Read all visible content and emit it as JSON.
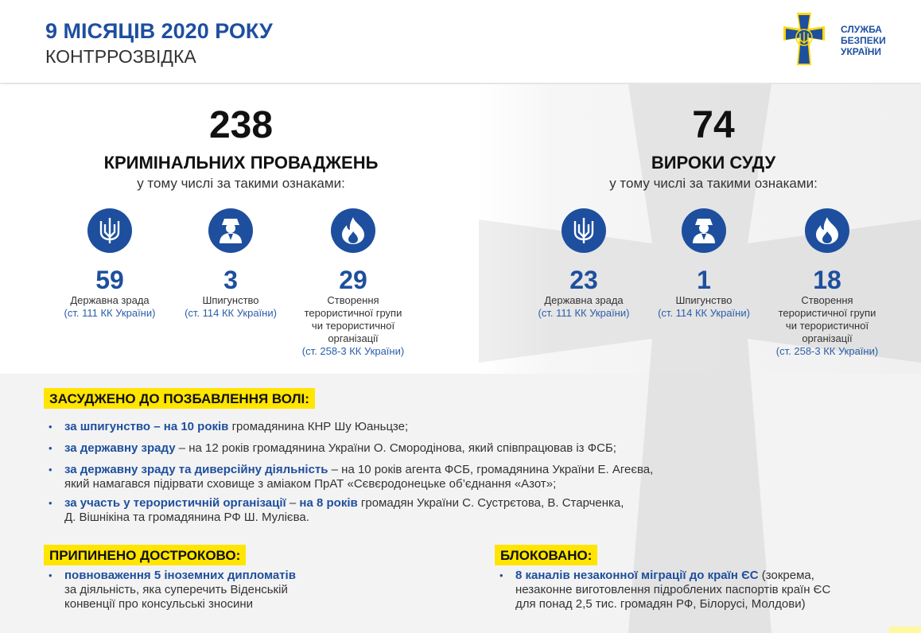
{
  "header": {
    "title": "9 МІСЯЦІВ 2020 РОКУ",
    "subtitle": "КОНТРРОЗВІДКА",
    "logo_text": [
      "СЛУЖБА",
      "БЕЗПЕКИ",
      "УКРАЇНИ"
    ]
  },
  "colors": {
    "brand_blue": "#1e4f9e",
    "highlight_yellow": "#ffe500"
  },
  "left": {
    "number": "238",
    "title": "КРИМІНАЛЬНИХ ПРОВАДЖЕНЬ",
    "subtitle": "у тому числі за такими ознаками:",
    "items": [
      {
        "icon": "trident-icon",
        "value": "59",
        "label": [
          "Державна зрада"
        ],
        "article": "(ст. 111 КК України)"
      },
      {
        "icon": "spy-icon",
        "value": "3",
        "label": [
          "Шпигунство"
        ],
        "article": "(ст. 114 КК України)"
      },
      {
        "icon": "fire-icon",
        "value": "29",
        "label": [
          "Створення",
          "терористичної групи",
          "чи терористичної",
          "організації"
        ],
        "article": "(ст. 258-3 КК України)"
      }
    ]
  },
  "right": {
    "number": "74",
    "title": "ВИРОКИ СУДУ",
    "subtitle": "у тому числі за такими ознаками:",
    "items": [
      {
        "icon": "trident-icon",
        "value": "23",
        "label": [
          "Державна зрада"
        ],
        "article": "(ст. 111 КК України)"
      },
      {
        "icon": "spy-icon",
        "value": "1",
        "label": [
          "Шпигунство"
        ],
        "article": "(ст. 114 КК України)"
      },
      {
        "icon": "fire-icon",
        "value": "18",
        "label": [
          "Створення",
          "терористичної групи",
          "чи терористичної",
          "організації"
        ],
        "article": "(ст. 258-3 КК України)"
      }
    ]
  },
  "sentenced": {
    "heading": "ЗАСУДЖЕНО ДО ПОЗБАВЛЕННЯ ВОЛІ:",
    "items": [
      {
        "bold": "за шпигунство – на 10 років",
        "text": " громадянина КНР Шу Юаньцзе;"
      },
      {
        "bold": "за державну зраду",
        "text": " – на 12 років громадянина України О. Смородінова, який співпрацював із ФСБ;"
      },
      {
        "bold": "за державну зраду та диверсійну діяльність",
        "text": " – на 10 років агента ФСБ, громадянина України Е. Агеєва,",
        "text2": "який намагався підірвати сховище з аміаком ПрАТ «Сєвєродонецьке об’єднання «Азот»;"
      },
      {
        "bold": "за участь у терористичній організації",
        "text": " – ",
        "bold2": "на 8 років",
        "text3": " громадян України С. Сустрєтова, В. Старченка,",
        "text2": "Д. Вішнікіна та громадянина РФ  Ш. Мулієва."
      }
    ]
  },
  "terminated": {
    "heading": "ПРИПИНЕНО ДОСТРОКОВО:",
    "bold": "повноваження 5 іноземних дипломатів",
    "lines": [
      "за діяльність, яка суперечить Віденській",
      "конвенції про консульські зносини"
    ]
  },
  "blocked": {
    "heading": "БЛОКОВАНО:",
    "bold": "8 каналів незаконної міграції до країн ЄС",
    "text": " (зокрема,",
    "lines": [
      "незаконне виготовлення підроблених паспортів країн ЄС",
      "для понад 2,5 тис. громадян РФ, Білорусі, Молдови)"
    ]
  }
}
